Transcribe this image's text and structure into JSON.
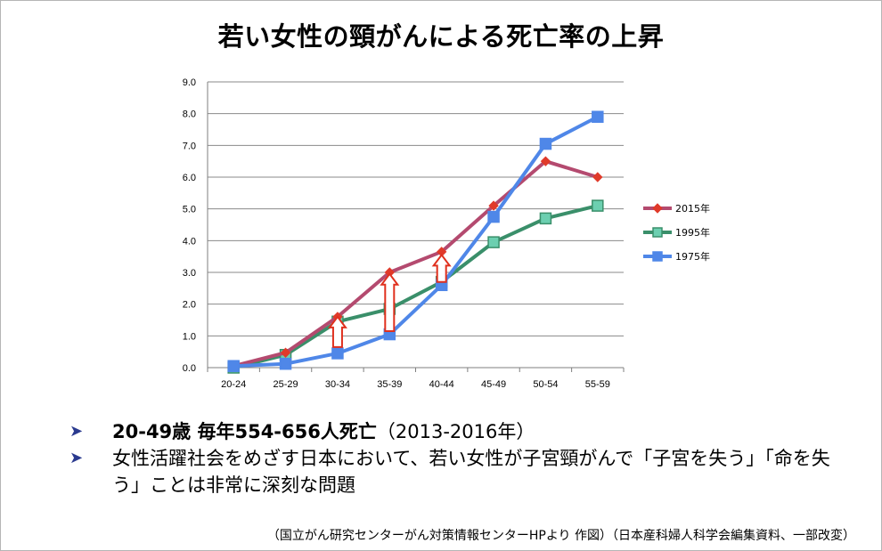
{
  "slide": {
    "title": "若い女性の頸がんによる死亡率の上昇",
    "bullets": [
      {
        "marker": "➤",
        "bold": "20-49歳 毎年554-656人死亡",
        "normal": "（2013-2016年）"
      },
      {
        "marker": "➤",
        "bold": "",
        "normal": "女性活躍社会をめざす日本において、若い女性が子宮頸がんで「子宮を失う」「命を失う」ことは非常に深刻な問題"
      }
    ],
    "source": "（国立がん研究センターがん対策情報センターHPより  作図）（日本産科婦人科学会編集資料、一部改変）"
  },
  "chart_data": {
    "type": "line",
    "title": "",
    "xlabel": "",
    "ylabel": "",
    "categories": [
      "20-24",
      "25-29",
      "30-34",
      "35-39",
      "40-44",
      "45-49",
      "50-54",
      "55-59"
    ],
    "ylim": [
      0,
      9
    ],
    "yticks": [
      "0.0",
      "1.0",
      "2.0",
      "3.0",
      "4.0",
      "5.0",
      "6.0",
      "7.0",
      "8.0",
      "9.0"
    ],
    "grid": true,
    "legend_position": "right",
    "series": [
      {
        "name": "2015年",
        "color": "#b44a6f",
        "marker": "diamond",
        "marker_color": "#e03a2a",
        "values": [
          0.05,
          0.47,
          1.6,
          3.0,
          3.65,
          5.1,
          6.5,
          6.0
        ]
      },
      {
        "name": "1995年",
        "color": "#3a8f6a",
        "marker": "square",
        "marker_color": "#6ccfb0",
        "values": [
          0.0,
          0.4,
          1.45,
          1.85,
          2.7,
          3.95,
          4.7,
          5.1
        ]
      },
      {
        "name": "1975年",
        "color": "#4f87e8",
        "marker": "square",
        "marker_color": "#4f87e8",
        "values": [
          0.05,
          0.12,
          0.45,
          1.05,
          2.6,
          4.75,
          7.05,
          7.9
        ]
      }
    ],
    "annotations": [
      {
        "type": "up-arrow",
        "category": "30-34",
        "from": 0.65,
        "to": 1.6
      },
      {
        "type": "up-arrow",
        "category": "35-39",
        "from": 1.15,
        "to": 2.95
      },
      {
        "type": "up-arrow",
        "category": "40-44",
        "from": 2.7,
        "to": 3.55
      }
    ],
    "arrow_color": "#e0301e"
  }
}
